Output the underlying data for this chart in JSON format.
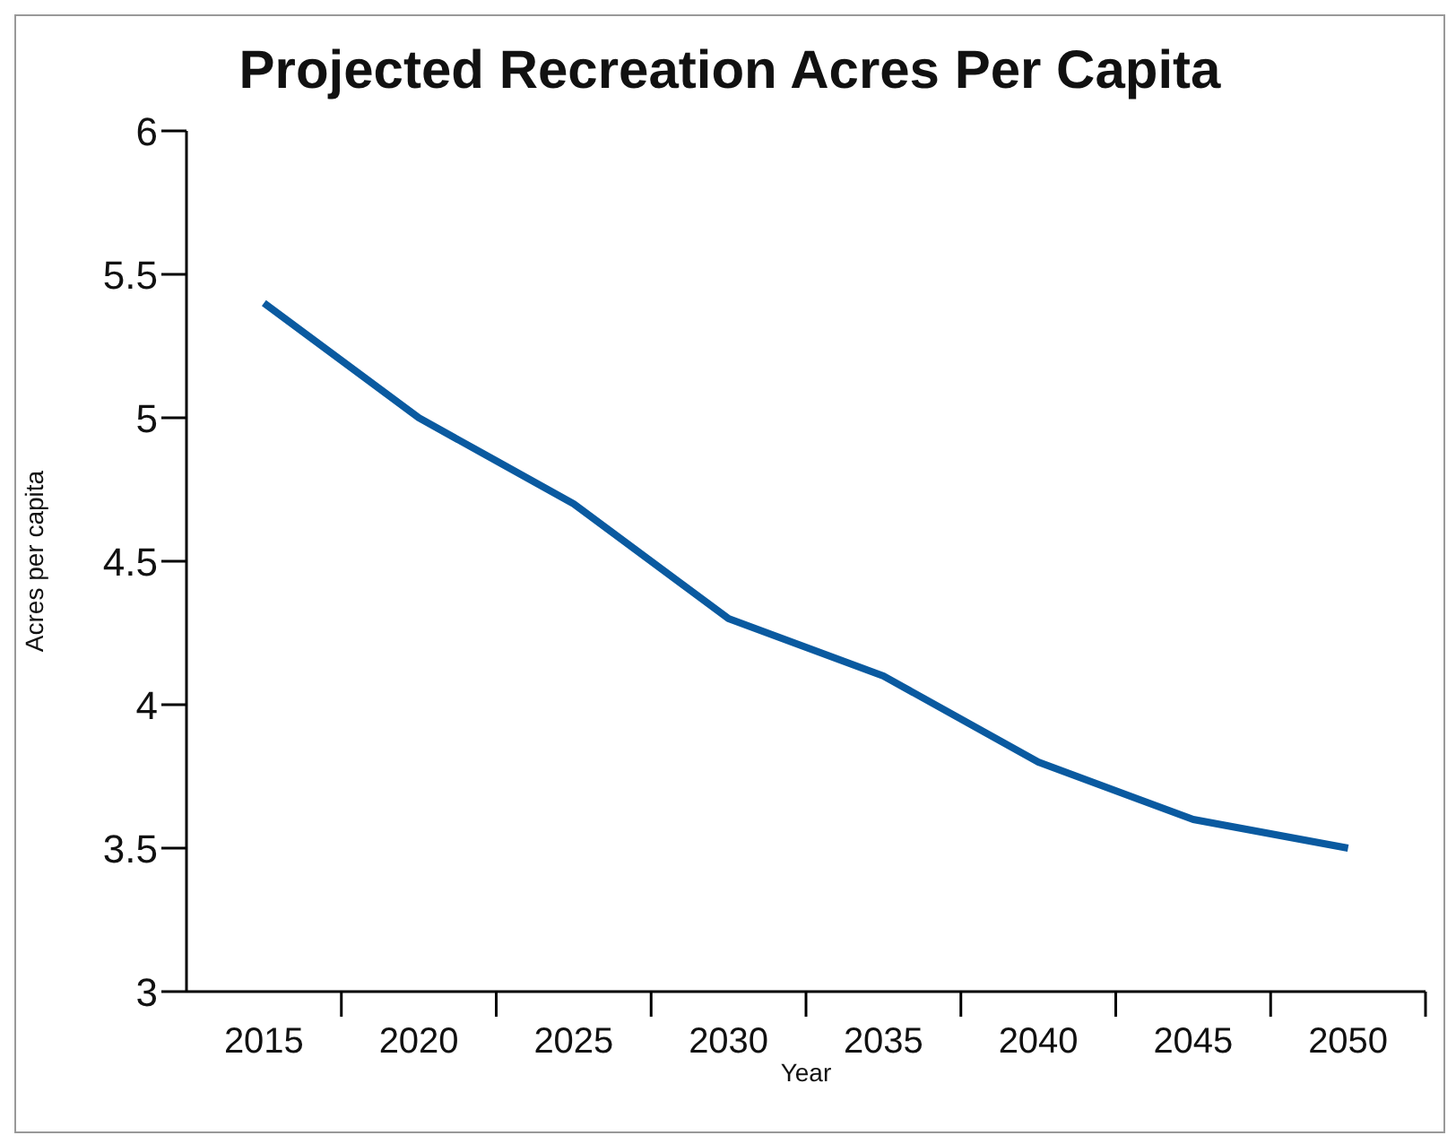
{
  "chart_data": {
    "type": "line",
    "title": "Projected Recreation Acres Per Capita",
    "xlabel": "Year",
    "ylabel": "Acres per capita",
    "categories": [
      "2015",
      "2020",
      "2025",
      "2030",
      "2035",
      "2040",
      "2045",
      "2050"
    ],
    "series": [
      {
        "color": "#0a5aa0",
        "values": [
          5.4,
          5.0,
          4.7,
          4.3,
          4.1,
          3.8,
          3.6,
          3.5
        ]
      }
    ],
    "ylim": [
      3,
      6
    ],
    "yticks": [
      3,
      3.5,
      4,
      4.5,
      5,
      5.5,
      6
    ],
    "grid": false,
    "legend": false,
    "marker": "none",
    "line_style": "solid"
  }
}
